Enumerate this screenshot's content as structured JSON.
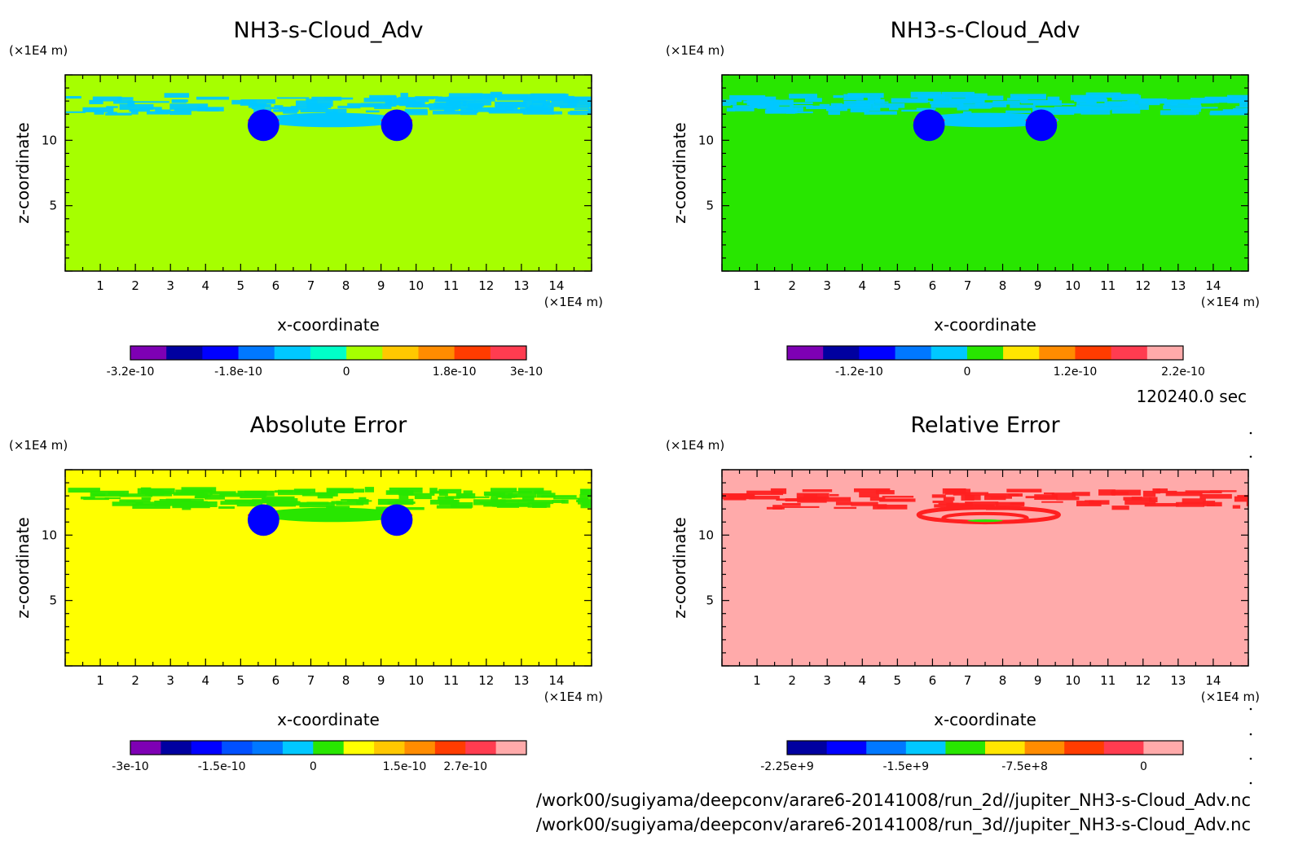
{
  "figure": {
    "timestamp": "120240.0 sec",
    "file_paths": [
      "/work00/sugiyama/deepconv/arare6-20141008/run_2d//jupiter_NH3-s-Cloud_Adv.nc",
      "/work00/sugiyama/deepconv/arare6-20141008/run_3d//jupiter_NH3-s-Cloud_Adv.nc"
    ]
  },
  "chart_data": [
    {
      "type": "heatmap",
      "title": "NH3-s-Cloud_Adv",
      "xlabel": "x-coordinate",
      "ylabel": "z-coordinate",
      "x_unit": "(×1E4 m)",
      "y_unit": "(×1E4 m)",
      "xlim": [
        0,
        15
      ],
      "ylim": [
        0,
        15
      ],
      "x_ticks": [
        "1",
        "2",
        "3",
        "4",
        "5",
        "6",
        "7",
        "8",
        "9",
        "10",
        "11",
        "12",
        "13",
        "14"
      ],
      "y_ticks": [
        "5",
        "10"
      ],
      "background_color": "#a6ff00",
      "colorbar": {
        "colors": [
          "#7e00b4",
          "#0000a0",
          "#0000ff",
          "#0078ff",
          "#00c8ff",
          "#00ffc8",
          "#a6ff00",
          "#ffc800",
          "#ff8c00",
          "#ff3c00",
          "#ff3c50"
        ],
        "labels": [
          "-3.2e-10",
          "-1.8e-10",
          "0",
          "1.8e-10",
          "3e-10"
        ],
        "label_bounds": [
          0,
          3,
          6,
          9,
          11
        ]
      },
      "features": {
        "band_color": "#00c8ff",
        "pos_color": "#ff3c00",
        "neg_color": "#0000ff",
        "blob_centers_x": [
          5.65,
          9.45
        ],
        "blob_z": 11.4
      }
    },
    {
      "type": "heatmap",
      "title": "NH3-s-Cloud_Adv",
      "xlabel": "x-coordinate",
      "ylabel": "z-coordinate",
      "x_unit": "(×1E4 m)",
      "y_unit": "(×1E4 m)",
      "xlim": [
        0,
        15
      ],
      "ylim": [
        0,
        15
      ],
      "x_ticks": [
        "1",
        "2",
        "3",
        "4",
        "5",
        "6",
        "7",
        "8",
        "9",
        "10",
        "11",
        "12",
        "13",
        "14"
      ],
      "y_ticks": [
        "5",
        "10"
      ],
      "background_color": "#28e600",
      "colorbar": {
        "colors": [
          "#7e00b4",
          "#0000a0",
          "#0000ff",
          "#0078ff",
          "#00c8ff",
          "#28e600",
          "#ffe600",
          "#ff8c00",
          "#ff3c00",
          "#ff3c50",
          "#ffaaaa"
        ],
        "labels": [
          "-1.2e-10",
          "0",
          "1.2e-10",
          "2.2e-10"
        ],
        "label_bounds": [
          2,
          5,
          8,
          11
        ]
      },
      "features": {
        "band_color": "#00c8ff",
        "pos_color": "#ff3c00",
        "neg_color": "#0000ff",
        "blob_centers_x": [
          5.9,
          9.1
        ],
        "blob_z": 11.4
      }
    },
    {
      "type": "heatmap",
      "title": "Absolute Error",
      "xlabel": "x-coordinate",
      "ylabel": "z-coordinate",
      "x_unit": "(×1E4 m)",
      "y_unit": "(×1E4 m)",
      "xlim": [
        0,
        15
      ],
      "ylim": [
        0,
        15
      ],
      "x_ticks": [
        "1",
        "2",
        "3",
        "4",
        "5",
        "6",
        "7",
        "8",
        "9",
        "10",
        "11",
        "12",
        "13",
        "14"
      ],
      "y_ticks": [
        "5",
        "10"
      ],
      "background_color": "#ffff00",
      "colorbar": {
        "colors": [
          "#7e00b4",
          "#0000a0",
          "#0000ff",
          "#0050ff",
          "#0078ff",
          "#00c8ff",
          "#28e600",
          "#ffff00",
          "#ffc800",
          "#ff8c00",
          "#ff3c00",
          "#ff3c50",
          "#ffaaaa"
        ],
        "labels": [
          "-3e-10",
          "-1.5e-10",
          "0",
          "1.5e-10",
          "2.7e-10"
        ],
        "label_bounds": [
          0,
          3,
          6,
          9,
          11
        ]
      },
      "features": {
        "band_color": "#28e600",
        "pos_color": "#ff3c00",
        "neg_color": "#0000ff",
        "blob_centers_x": [
          5.65,
          9.45
        ],
        "blob_z": 11.4
      }
    },
    {
      "type": "heatmap",
      "title": "Relative Error",
      "xlabel": "x-coordinate",
      "ylabel": "z-coordinate",
      "x_unit": "(×1E4 m)",
      "y_unit": "(×1E4 m)",
      "xlim": [
        0,
        15
      ],
      "ylim": [
        0,
        15
      ],
      "x_ticks": [
        "1",
        "2",
        "3",
        "4",
        "5",
        "6",
        "7",
        "8",
        "9",
        "10",
        "11",
        "12",
        "13",
        "14"
      ],
      "y_ticks": [
        "5",
        "10"
      ],
      "background_color": "#ffaaaa",
      "colorbar": {
        "colors": [
          "#0000a0",
          "#0000ff",
          "#0078ff",
          "#00c8ff",
          "#28e600",
          "#ffe600",
          "#ff8c00",
          "#ff3c00",
          "#ff3c50",
          "#ffaaaa"
        ],
        "labels": [
          "-2.25e+9",
          "-1.5e+9",
          "-7.5e+8",
          "0"
        ],
        "label_bounds": [
          0,
          3,
          6,
          9
        ]
      },
      "features": {
        "band_color": "#ff2020",
        "pos_color": "#ff2020",
        "neg_color": "#28e600",
        "blob_centers_x": [
          7.5
        ],
        "blob_z": 11.3
      }
    }
  ]
}
